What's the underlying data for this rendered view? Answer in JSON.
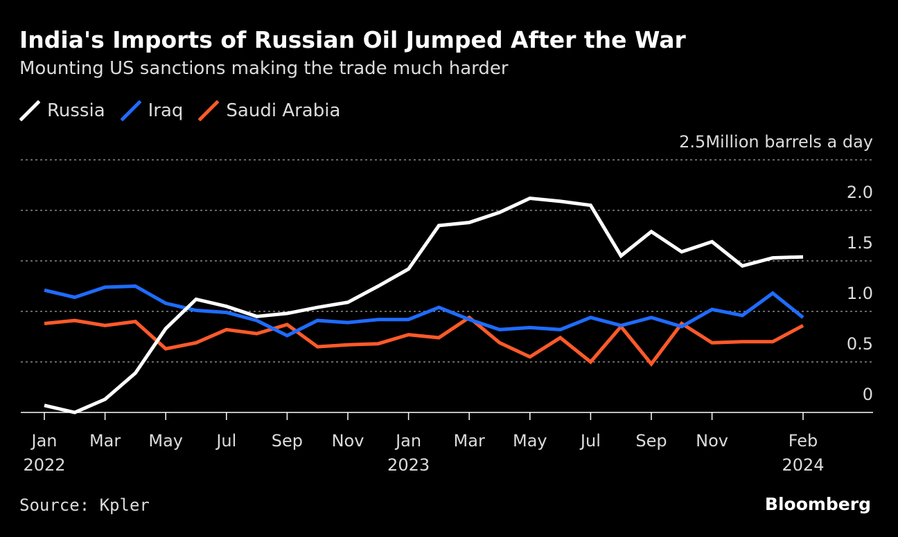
{
  "title": "India's Imports of Russian Oil Jumped After the War",
  "subtitle": "Mounting US sanctions making the trade much harder",
  "source": "Source: Kpler",
  "brand": "Bloomberg",
  "colors": {
    "background": "#000000",
    "russia": "#ffffff",
    "iraq": "#1f6cff",
    "saudi": "#ff5a2a",
    "grid": "#8a8a8a",
    "text": "#dcdcdc"
  },
  "chart_data": {
    "type": "line",
    "title": "India's Imports of Russian Oil Jumped After the War",
    "subtitle": "Mounting US sanctions making the trade much harder",
    "ylabel": "Million barrels a day",
    "unit_label": "Million barrels a day",
    "ylim": [
      0,
      2.5
    ],
    "y_ticks": [
      0,
      0.5,
      1.0,
      1.5,
      2.0,
      2.5
    ],
    "y_tick_labels": [
      "0",
      "0.5",
      "1.0",
      "1.5",
      "2.0",
      "2.5"
    ],
    "grid": true,
    "legend_position": "top-left",
    "x": [
      "2022-01",
      "2022-02",
      "2022-03",
      "2022-04",
      "2022-05",
      "2022-06",
      "2022-07",
      "2022-08",
      "2022-09",
      "2022-10",
      "2022-11",
      "2022-12",
      "2023-01",
      "2023-02",
      "2023-03",
      "2023-04",
      "2023-05",
      "2023-06",
      "2023-07",
      "2023-08",
      "2023-09",
      "2023-10",
      "2023-11",
      "2023-12",
      "2024-01",
      "2024-02"
    ],
    "x_ticks": [
      {
        "index": 0,
        "label": "Jan",
        "year": "2022"
      },
      {
        "index": 2,
        "label": "Mar",
        "year": ""
      },
      {
        "index": 4,
        "label": "May",
        "year": ""
      },
      {
        "index": 6,
        "label": "Jul",
        "year": ""
      },
      {
        "index": 8,
        "label": "Sep",
        "year": ""
      },
      {
        "index": 10,
        "label": "Nov",
        "year": ""
      },
      {
        "index": 12,
        "label": "Jan",
        "year": "2023"
      },
      {
        "index": 14,
        "label": "Mar",
        "year": ""
      },
      {
        "index": 16,
        "label": "May",
        "year": ""
      },
      {
        "index": 18,
        "label": "Jul",
        "year": ""
      },
      {
        "index": 20,
        "label": "Sep",
        "year": ""
      },
      {
        "index": 22,
        "label": "Nov",
        "year": ""
      },
      {
        "index": 25,
        "label": "Feb",
        "year": "2024"
      }
    ],
    "series": [
      {
        "name": "Russia",
        "key": "russia",
        "values": [
          0.07,
          0.0,
          0.13,
          0.39,
          0.83,
          1.12,
          1.05,
          0.95,
          0.98,
          1.04,
          1.09,
          1.25,
          1.42,
          1.85,
          1.88,
          1.98,
          2.12,
          2.09,
          2.05,
          1.55,
          1.79,
          1.59,
          1.69,
          1.45,
          1.53,
          1.54
        ]
      },
      {
        "name": "Iraq",
        "key": "iraq",
        "values": [
          1.21,
          1.14,
          1.24,
          1.25,
          1.08,
          1.01,
          0.99,
          0.91,
          0.76,
          0.91,
          0.89,
          0.92,
          0.92,
          1.04,
          0.92,
          0.82,
          0.84,
          0.82,
          0.94,
          0.86,
          0.94,
          0.85,
          1.02,
          0.96,
          1.18,
          0.94
        ]
      },
      {
        "name": "Saudi Arabia",
        "key": "saudi",
        "values": [
          0.88,
          0.91,
          0.86,
          0.9,
          0.63,
          0.69,
          0.82,
          0.78,
          0.87,
          0.65,
          0.67,
          0.68,
          0.77,
          0.74,
          0.94,
          0.69,
          0.55,
          0.74,
          0.5,
          0.85,
          0.48,
          0.88,
          0.69,
          0.7,
          0.7,
          0.86
        ]
      }
    ]
  }
}
